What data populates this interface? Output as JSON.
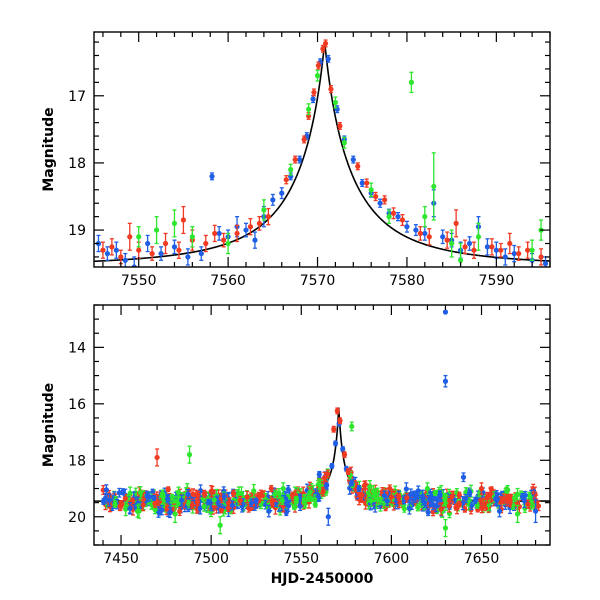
{
  "chart_data": [
    {
      "type": "scatter",
      "title": "",
      "xlabel": "",
      "ylabel": "Magnitude",
      "xlim": [
        7545,
        7596
      ],
      "ylim": [
        19.55,
        16.05
      ],
      "y_inverted": true,
      "x_major_ticks": [
        7550,
        7560,
        7570,
        7580,
        7590
      ],
      "x_minor_step": 2,
      "y_major_ticks": [
        17,
        18,
        19
      ],
      "y_minor_step": 0.2,
      "grid": false,
      "legend": "none",
      "colors": {
        "blue": "#1f5fe6",
        "red": "#f03a22",
        "green": "#2de62d",
        "model": "#000000"
      },
      "model_curve": {
        "t0": 7570.8,
        "baseline_mag": 19.55,
        "peak_amplification": 22,
        "tE_days": 30
      },
      "series": [
        {
          "color": "blue",
          "points": [
            [
              7545.5,
              19.2,
              0.12
            ],
            [
              7546.5,
              19.35,
              0.1
            ],
            [
              7547.5,
              19.3,
              0.12
            ],
            [
              7548.5,
              19.45,
              0.1
            ],
            [
              7549.5,
              19.55,
              0.15
            ],
            [
              7551,
              19.2,
              0.12
            ],
            [
              7552.5,
              19.35,
              0.1
            ],
            [
              7554,
              19.25,
              0.1
            ],
            [
              7555.5,
              19.4,
              0.12
            ],
            [
              7557,
              19.35,
              0.1
            ],
            [
              7558.2,
              18.2,
              0.05
            ],
            [
              7559,
              19.05,
              0.1
            ],
            [
              7560,
              19.1,
              0.1
            ],
            [
              7561,
              18.95,
              0.15
            ],
            [
              7562,
              19.0,
              0.1
            ],
            [
              7563,
              19.15,
              0.12
            ],
            [
              7564,
              18.8,
              0.15
            ],
            [
              7565,
              18.55,
              0.08
            ],
            [
              7566,
              18.45,
              0.08
            ],
            [
              7567,
              18.2,
              0.05
            ],
            [
              7568,
              17.95,
              0.05
            ],
            [
              7568.8,
              17.6,
              0.05
            ],
            [
              7569.5,
              17.05,
              0.05
            ],
            [
              7570.3,
              16.5,
              0.05
            ],
            [
              7571.2,
              16.45,
              0.05
            ],
            [
              7572.2,
              17.2,
              0.05
            ],
            [
              7573,
              17.65,
              0.05
            ],
            [
              7574,
              17.95,
              0.05
            ],
            [
              7575,
              18.3,
              0.05
            ],
            [
              7576,
              18.45,
              0.06
            ],
            [
              7577,
              18.6,
              0.06
            ],
            [
              7578,
              18.75,
              0.06
            ],
            [
              7579,
              18.8,
              0.06
            ],
            [
              7580,
              18.95,
              0.08
            ],
            [
              7581,
              19.0,
              0.08
            ],
            [
              7582,
              19.05,
              0.1
            ],
            [
              7583,
              18.6,
              0.2
            ],
            [
              7584,
              19.1,
              0.1
            ],
            [
              7585,
              19.15,
              0.1
            ],
            [
              7586,
              19.3,
              0.12
            ],
            [
              7587,
              19.2,
              0.1
            ],
            [
              7588,
              18.95,
              0.15
            ],
            [
              7589,
              19.25,
              0.12
            ],
            [
              7590,
              19.3,
              0.12
            ],
            [
              7591,
              19.4,
              0.12
            ],
            [
              7592,
              19.35,
              0.12
            ],
            [
              7594,
              19.45,
              0.1
            ],
            [
              7595.5,
              19.5,
              0.1
            ]
          ]
        },
        {
          "color": "red",
          "points": [
            [
              7546,
              19.3,
              0.12
            ],
            [
              7547,
              19.25,
              0.12
            ],
            [
              7548,
              19.4,
              0.1
            ],
            [
              7549,
              19.1,
              0.2
            ],
            [
              7550,
              19.3,
              0.12
            ],
            [
              7551.5,
              19.35,
              0.1
            ],
            [
              7553,
              19.2,
              0.15
            ],
            [
              7554.5,
              19.3,
              0.12
            ],
            [
              7555,
              18.85,
              0.2
            ],
            [
              7556,
              19.15,
              0.15
            ],
            [
              7557.5,
              19.2,
              0.12
            ],
            [
              7558.5,
              19.05,
              0.12
            ],
            [
              7559.5,
              19.15,
              0.1
            ],
            [
              7561,
              19.05,
              0.12
            ],
            [
              7562.5,
              18.95,
              0.12
            ],
            [
              7563.5,
              18.9,
              0.1
            ],
            [
              7564.5,
              18.8,
              0.12
            ],
            [
              7566.5,
              18.25,
              0.06
            ],
            [
              7567.5,
              17.95,
              0.05
            ],
            [
              7568.5,
              17.65,
              0.05
            ],
            [
              7569,
              17.3,
              0.05
            ],
            [
              7569.6,
              16.95,
              0.05
            ],
            [
              7570.1,
              16.55,
              0.05
            ],
            [
              7570.6,
              16.3,
              0.05
            ],
            [
              7570.9,
              16.22,
              0.05
            ],
            [
              7571.5,
              16.9,
              0.05
            ],
            [
              7572.5,
              17.45,
              0.05
            ],
            [
              7574.5,
              18.05,
              0.05
            ],
            [
              7575.5,
              18.3,
              0.06
            ],
            [
              7576.5,
              18.5,
              0.06
            ],
            [
              7577.5,
              18.55,
              0.06
            ],
            [
              7578.5,
              18.75,
              0.08
            ],
            [
              7579.5,
              18.85,
              0.08
            ],
            [
              7581.5,
              19.05,
              0.1
            ],
            [
              7582.5,
              19.1,
              0.12
            ],
            [
              7584.5,
              19.15,
              0.12
            ],
            [
              7585.5,
              18.9,
              0.2
            ],
            [
              7586.5,
              19.25,
              0.1
            ],
            [
              7587.5,
              19.3,
              0.12
            ],
            [
              7589.5,
              19.25,
              0.12
            ],
            [
              7590.5,
              19.3,
              0.1
            ],
            [
              7591.5,
              19.2,
              0.15
            ],
            [
              7592.5,
              19.35,
              0.1
            ],
            [
              7593.5,
              19.3,
              0.12
            ],
            [
              7595,
              19.4,
              0.12
            ]
          ]
        },
        {
          "color": "green",
          "points": [
            [
              7550,
              19.1,
              0.15
            ],
            [
              7552,
              19.0,
              0.2
            ],
            [
              7554,
              18.9,
              0.2
            ],
            [
              7556,
              19.1,
              0.15
            ],
            [
              7560,
              19.2,
              0.15
            ],
            [
              7564,
              18.7,
              0.15
            ],
            [
              7567,
              18.1,
              0.08
            ],
            [
              7569,
              17.2,
              0.08
            ],
            [
              7570,
              16.7,
              0.08
            ],
            [
              7572,
              17.1,
              0.08
            ],
            [
              7573,
              17.7,
              0.08
            ],
            [
              7576,
              18.4,
              0.1
            ],
            [
              7578,
              18.8,
              0.1
            ],
            [
              7580.5,
              16.8,
              0.15
            ],
            [
              7582,
              18.8,
              0.15
            ],
            [
              7583,
              18.35,
              0.5
            ],
            [
              7585,
              19.2,
              0.2
            ],
            [
              7586,
              19.45,
              0.25
            ],
            [
              7588,
              19.1,
              0.2
            ],
            [
              7594,
              19.3,
              0.15
            ],
            [
              7595,
              19.0,
              0.15
            ]
          ]
        }
      ]
    },
    {
      "type": "scatter",
      "title": "",
      "xlabel": "HJD-2450000",
      "ylabel": "Magnitude",
      "xlim": [
        7435,
        7688
      ],
      "ylim": [
        21.0,
        12.5
      ],
      "y_inverted": true,
      "x_major_ticks": [
        7450,
        7500,
        7550,
        7600,
        7650
      ],
      "x_minor_step": 10,
      "y_major_ticks": [
        14,
        16,
        18,
        20
      ],
      "y_minor_step": 0.5,
      "grid": false,
      "legend": "none",
      "colors": {
        "blue": "#1f5fe6",
        "red": "#f03a22",
        "green": "#2de62d",
        "model": "#000000"
      },
      "model_curve": {
        "t0": 7570.8,
        "baseline_mag": 19.45,
        "peak_amplification": 22,
        "tE_days": 30
      },
      "baseline_scatter": {
        "xmin": 7440,
        "xmax": 7682,
        "center_mag": 19.45,
        "spread": 0.35
      },
      "series": [
        {
          "color": "blue",
          "points": [
            [
              7630,
              12.75,
              0.05
            ],
            [
              7630,
              15.2,
              0.2
            ],
            [
              7560,
              18.5,
              0.1
            ],
            [
              7564,
              18.9,
              0.1
            ],
            [
              7567,
              18.2,
              0.08
            ],
            [
              7569,
              17.4,
              0.08
            ],
            [
              7571,
              16.7,
              0.08
            ],
            [
              7573,
              17.6,
              0.08
            ],
            [
              7575,
              18.3,
              0.08
            ],
            [
              7578,
              18.8,
              0.1
            ],
            [
              7582,
              19.0,
              0.1
            ],
            [
              7640,
              18.6,
              0.15
            ],
            [
              7565,
              20.0,
              0.3
            ],
            [
              7680,
              19.8,
              0.4
            ],
            [
              7532,
              19.8,
              0.2
            ],
            [
              7455,
              19.7,
              0.2
            ],
            [
              7610,
              19.7,
              0.2
            ],
            [
              7660,
              19.8,
              0.2
            ]
          ]
        },
        {
          "color": "red",
          "points": [
            [
              7470,
              17.9,
              0.3
            ],
            [
              7568,
              16.9,
              0.1
            ],
            [
              7570,
              16.25,
              0.1
            ],
            [
              7571.5,
              16.6,
              0.1
            ],
            [
              7574,
              17.8,
              0.1
            ],
            [
              7576,
              18.4,
              0.1
            ],
            [
              7585,
              18.9,
              0.15
            ],
            [
              7500,
              19.1,
              0.2
            ],
            [
              7520,
              19.3,
              0.2
            ],
            [
              7600,
              19.3,
              0.2
            ],
            [
              7650,
              19.0,
              0.2
            ]
          ]
        },
        {
          "color": "green",
          "points": [
            [
              7488,
              17.8,
              0.3
            ],
            [
              7578,
              16.8,
              0.15
            ],
            [
              7630,
              20.4,
              0.3
            ],
            [
              7505,
              20.3,
              0.3
            ],
            [
              7460,
              19.8,
              0.25
            ],
            [
              7540,
              19.0,
              0.2
            ],
            [
              7620,
              19.0,
              0.2
            ],
            [
              7670,
              19.9,
              0.3
            ],
            [
              7590,
              19.1,
              0.2
            ],
            [
              7480,
              19.9,
              0.3
            ],
            [
              7670,
              19.2,
              0.2
            ]
          ]
        }
      ]
    }
  ]
}
